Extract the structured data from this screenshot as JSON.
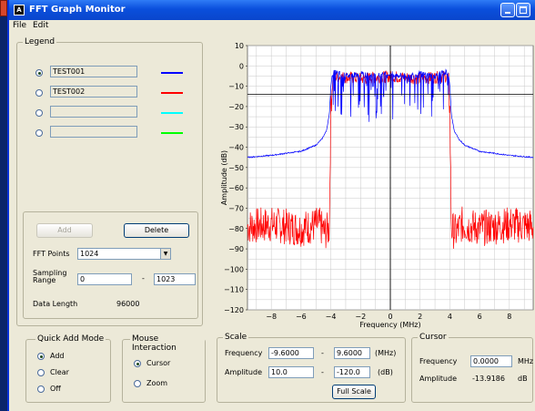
{
  "window": {
    "title": "FFT Graph Monitor",
    "icon_text": "A"
  },
  "menu": [
    {
      "label": "File"
    },
    {
      "label": "Edit"
    }
  ],
  "legend": {
    "title": "Legend",
    "entries": [
      {
        "name": "TEST001",
        "selected": true,
        "color": "#0000ff"
      },
      {
        "name": "TEST002",
        "selected": false,
        "color": "#ff0000"
      },
      {
        "name": "",
        "selected": false,
        "color": "#00ffff"
      },
      {
        "name": "",
        "selected": false,
        "color": "#00ff00"
      }
    ]
  },
  "buttons": {
    "add": "Add",
    "delete": "Delete",
    "full_scale": "Full Scale"
  },
  "fft_points": {
    "label": "FFT Points",
    "value": "1024"
  },
  "sampling_range": {
    "label_line1": "Sampling",
    "label_line2": "Range",
    "from": "0",
    "dash": "-",
    "to": "1023"
  },
  "data_length": {
    "label": "Data Length",
    "value": "96000"
  },
  "quick_add_mode": {
    "title": "Quick Add Mode",
    "options": [
      {
        "label": "Add",
        "selected": true
      },
      {
        "label": "Clear",
        "selected": false
      },
      {
        "label": "Off",
        "selected": false
      }
    ]
  },
  "mouse_interaction": {
    "title": "Mouse Interaction",
    "options": [
      {
        "label": "Cursor",
        "selected": true
      },
      {
        "label": "Zoom",
        "selected": false
      }
    ]
  },
  "scale": {
    "title": "Scale",
    "frequency": {
      "label": "Frequency",
      "min": "-9.6000",
      "dash": "-",
      "max": "9.6000",
      "unit": "(MHz)"
    },
    "amplitude": {
      "label": "Amplitude",
      "max": "10.0",
      "dash": "-",
      "min": "-120.0",
      "unit": "(dB)"
    }
  },
  "cursor": {
    "title": "Cursor",
    "frequency": {
      "label": "Frequency",
      "value": "0.0000",
      "unit": "MHz"
    },
    "amplitude": {
      "label": "Amplitude",
      "value": "-13.9186",
      "unit": "dB"
    }
  },
  "chart_data": {
    "type": "line",
    "xlabel": "Frequency (MHz)",
    "ylabel": "Amplitude (dB)",
    "xlim": [
      -9.6,
      9.6
    ],
    "ylim": [
      -120,
      10
    ],
    "xticks": [
      -8,
      -6,
      -4,
      -2,
      0,
      2,
      4,
      6,
      8
    ],
    "yticks": [
      10,
      0,
      -10,
      -20,
      -30,
      -40,
      -50,
      -60,
      -70,
      -80,
      -90,
      -100,
      -110,
      -120
    ],
    "grid": true,
    "cursor": {
      "x": 0.0,
      "y": -13.9186
    },
    "series": [
      {
        "color": "#0000ff",
        "x": [
          -9.6,
          -8,
          -7,
          -6,
          -5,
          -4.6,
          -4.3,
          -4.1,
          -4.0,
          -3.9,
          -3.8,
          -3.0,
          -2.0,
          -1.0,
          0,
          1.0,
          2.0,
          3.0,
          3.8,
          3.9,
          4.0,
          4.1,
          4.3,
          4.6,
          5,
          6,
          7,
          8,
          9.6
        ],
        "y": [
          -45,
          -44,
          -43,
          -42,
          -39,
          -36,
          -32,
          -24,
          -10,
          -4,
          -3,
          -5,
          -4,
          -5,
          -4,
          -5,
          -4,
          -5,
          -3,
          -4,
          -10,
          -24,
          -32,
          -36,
          -39,
          -42,
          -43,
          -44,
          -45
        ]
      },
      {
        "color": "#ff0000",
        "x": [
          -9.6,
          -8,
          -6,
          -4.8,
          -4.4,
          -4.1,
          -4.0,
          -3.9,
          -3.8,
          -2,
          0,
          2,
          3.8,
          3.9,
          4.0,
          4.1,
          4.4,
          4.8,
          6,
          8,
          9.6
        ],
        "y": [
          -79,
          -78,
          -80,
          -78,
          -82,
          -80,
          -20,
          -8,
          -4,
          -5,
          -4,
          -5,
          -4,
          -8,
          -20,
          -80,
          -82,
          -78,
          -80,
          -78,
          -79
        ]
      }
    ]
  }
}
